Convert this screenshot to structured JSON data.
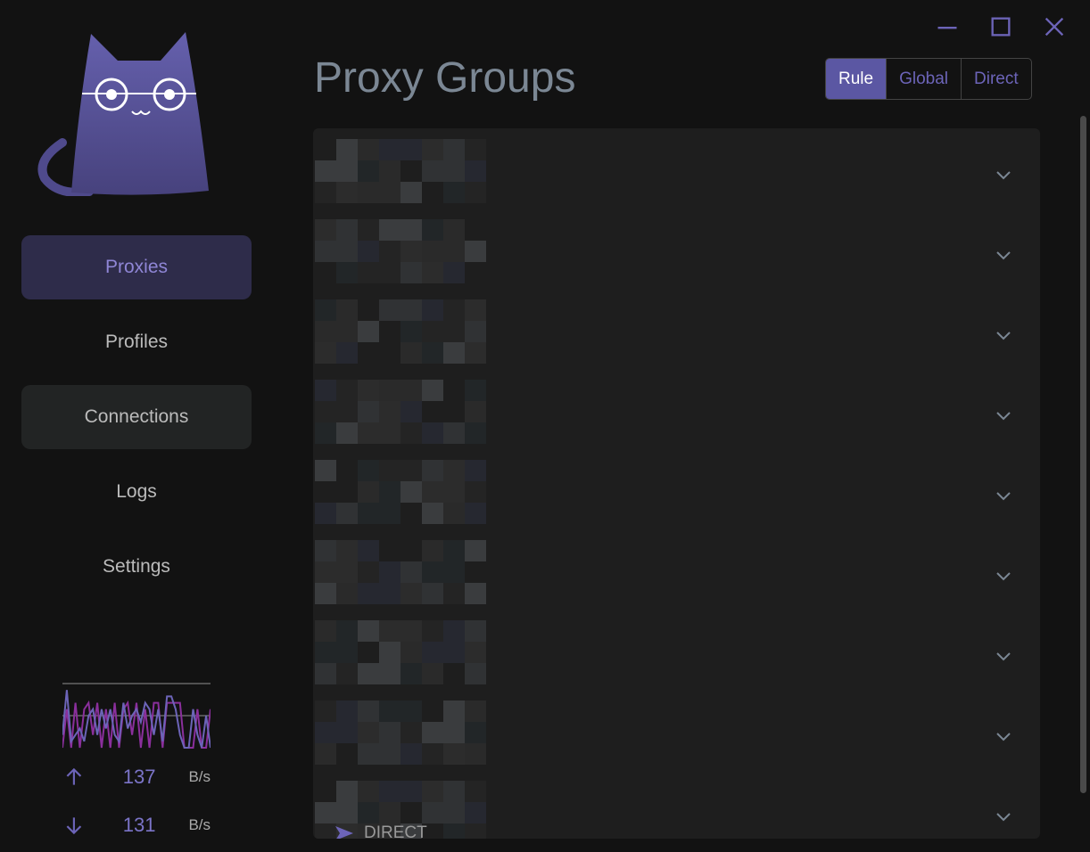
{
  "window": {
    "controls": [
      "minimize-icon",
      "maximize-icon",
      "close-icon"
    ]
  },
  "sidebar": {
    "items": [
      {
        "label": "Proxies",
        "state": "active"
      },
      {
        "label": "Profiles"
      },
      {
        "label": "Connections",
        "state": "hover"
      },
      {
        "label": "Logs"
      },
      {
        "label": "Settings"
      }
    ]
  },
  "traffic": {
    "upload_value": "137",
    "upload_unit": "B/s",
    "download_value": "131",
    "download_unit": "B/s",
    "upload_series": [
      0.2,
      0.9,
      0.1,
      0.2,
      0.3,
      0.1,
      0.5,
      0.6,
      0.2,
      0.6,
      0.3,
      0.6,
      0.2,
      0.1,
      0.7,
      0.3,
      0.5,
      0.6,
      0.4,
      0.7,
      0.6,
      0.2,
      0.6,
      0.1,
      0.8,
      0.8,
      0.6,
      0.2,
      0.0,
      0.0,
      0.6,
      0.2,
      0.0,
      0.5,
      0.0
    ],
    "download_series": [
      0.0,
      0.6,
      0.0,
      0.7,
      0.0,
      0.6,
      0.7,
      0.2,
      0.7,
      0.0,
      0.6,
      0.0,
      0.7,
      0.0,
      0.6,
      0.7,
      0.2,
      0.7,
      0.0,
      0.6,
      0.0,
      0.7,
      0.7,
      0.0,
      0.7,
      0.7,
      0.7,
      0.7,
      0.0,
      0.0,
      0.0,
      0.6,
      0.0,
      0.0,
      0.6
    ]
  },
  "header": {
    "title": "Proxy Groups",
    "modes": [
      {
        "label": "Rule",
        "selected": true
      },
      {
        "label": "Global"
      },
      {
        "label": "Direct"
      }
    ]
  },
  "groups": {
    "count": 9,
    "last_visible_proxy": "DIRECT"
  },
  "colors": {
    "accent": "#5b57a3",
    "background": "#121212",
    "panel": "#1e1e1e"
  }
}
